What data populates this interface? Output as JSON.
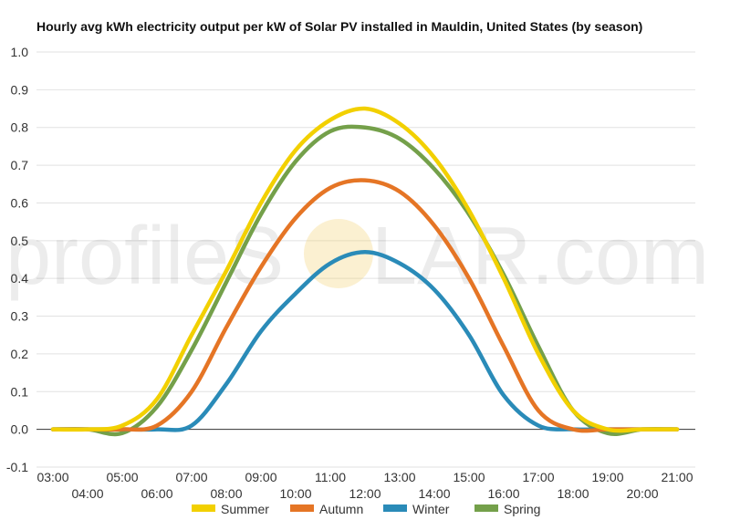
{
  "chart_data": {
    "type": "line",
    "title": "Hourly avg kWh electricity output per kW of Solar PV installed in Mauldin, United States (by season)",
    "xlabel": "",
    "ylabel": "",
    "x": [
      "03:00",
      "04:00",
      "05:00",
      "06:00",
      "07:00",
      "08:00",
      "09:00",
      "10:00",
      "11:00",
      "12:00",
      "13:00",
      "14:00",
      "15:00",
      "16:00",
      "17:00",
      "18:00",
      "19:00",
      "20:00",
      "21:00"
    ],
    "ylim": [
      -0.1,
      1.0
    ],
    "yticks": [
      "-0.1",
      "0.0",
      "0.1",
      "0.2",
      "0.3",
      "0.4",
      "0.5",
      "0.6",
      "0.7",
      "0.8",
      "0.9",
      "1.0"
    ],
    "grid": true,
    "legend_position": "bottom",
    "series": [
      {
        "name": "Summer",
        "color": "#f2d000",
        "values": [
          0.0,
          0.0,
          0.01,
          0.08,
          0.25,
          0.42,
          0.6,
          0.74,
          0.82,
          0.85,
          0.81,
          0.72,
          0.58,
          0.4,
          0.2,
          0.05,
          0.0,
          0.0,
          0.0
        ]
      },
      {
        "name": "Autumn",
        "color": "#e57525",
        "values": [
          0.0,
          0.0,
          0.0,
          0.01,
          0.1,
          0.27,
          0.43,
          0.56,
          0.64,
          0.66,
          0.63,
          0.54,
          0.4,
          0.22,
          0.05,
          0.0,
          0.0,
          0.0,
          0.0
        ]
      },
      {
        "name": "Winter",
        "color": "#2a8bb8",
        "values": [
          0.0,
          0.0,
          0.0,
          0.0,
          0.01,
          0.12,
          0.26,
          0.36,
          0.44,
          0.47,
          0.44,
          0.37,
          0.25,
          0.09,
          0.01,
          0.0,
          0.0,
          0.0,
          0.0
        ]
      },
      {
        "name": "Spring",
        "color": "#74a04a",
        "values": [
          0.0,
          0.0,
          -0.01,
          0.06,
          0.21,
          0.39,
          0.57,
          0.71,
          0.79,
          0.8,
          0.77,
          0.69,
          0.57,
          0.41,
          0.22,
          0.05,
          -0.01,
          0.0,
          0.0
        ]
      }
    ]
  },
  "watermark": {
    "part1": "profileS",
    "part2": "LAR.com"
  }
}
